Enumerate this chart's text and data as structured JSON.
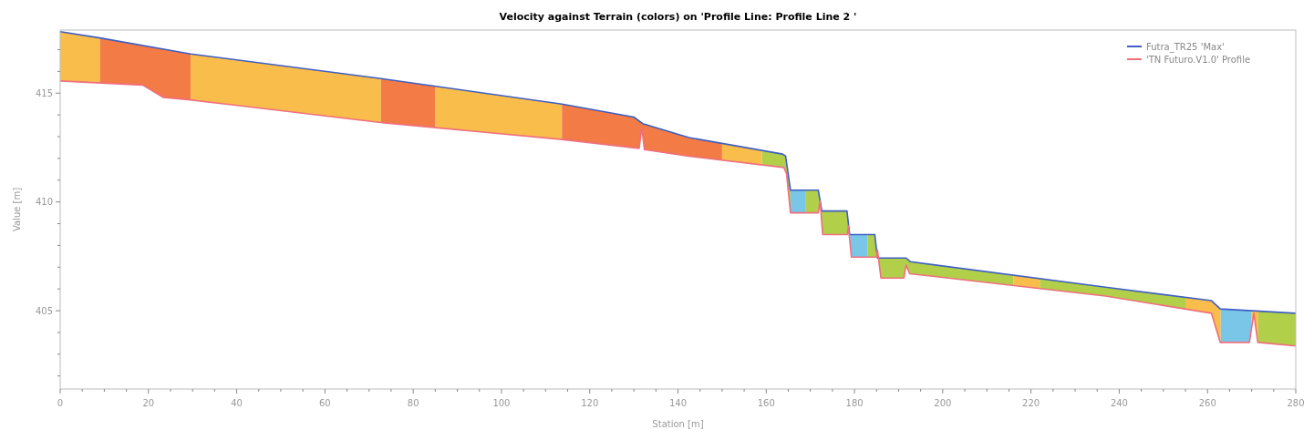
{
  "chart_data": {
    "type": "line",
    "title": "Velocity against Terrain (colors) on 'Profile Line: Profile Line 2 '",
    "xlabel": "Station [m]",
    "ylabel": "Value [m]",
    "legend": "top right",
    "marker": "none",
    "line_style": "solid",
    "xlim": [
      0,
      280
    ],
    "ylim": [
      401.4,
      417.9
    ],
    "xticks": [
      0,
      {
        "value": 5,
        "label": null
      },
      {
        "value": 10,
        "label": null
      },
      {
        "value": 15,
        "label": null
      },
      20,
      {
        "value": 25,
        "label": null
      },
      {
        "value": 30,
        "label": null
      },
      {
        "value": 35,
        "label": null
      },
      40,
      {
        "value": 45,
        "label": null
      },
      {
        "value": 50,
        "label": null
      },
      {
        "value": 55,
        "label": null
      },
      60,
      {
        "value": 65,
        "label": null
      },
      {
        "value": 70,
        "label": null
      },
      {
        "value": 75,
        "label": null
      },
      80,
      {
        "value": 85,
        "label": null
      },
      {
        "value": 90,
        "label": null
      },
      {
        "value": 95,
        "label": null
      },
      100,
      {
        "value": 105,
        "label": null
      },
      {
        "value": 110,
        "label": null
      },
      {
        "value": 115,
        "label": null
      },
      120,
      {
        "value": 125,
        "label": null
      },
      {
        "value": 130,
        "label": null
      },
      {
        "value": 135,
        "label": null
      },
      140,
      {
        "value": 145,
        "label": null
      },
      {
        "value": 150,
        "label": null
      },
      {
        "value": 155,
        "label": null
      },
      160,
      {
        "value": 165,
        "label": null
      },
      {
        "value": 170,
        "label": null
      },
      {
        "value": 175,
        "label": null
      },
      180,
      {
        "value": 185,
        "label": null
      },
      {
        "value": 190,
        "label": null
      },
      {
        "value": 195,
        "label": null
      },
      200,
      {
        "value": 205,
        "label": null
      },
      {
        "value": 210,
        "label": null
      },
      {
        "value": 215,
        "label": null
      },
      220,
      {
        "value": 225,
        "label": null
      },
      {
        "value": 230,
        "label": null
      },
      {
        "value": 235,
        "label": null
      },
      240,
      {
        "value": 245,
        "label": null
      },
      {
        "value": 250,
        "label": null
      },
      {
        "value": 255,
        "label": null
      },
      260,
      {
        "value": 265,
        "label": null
      },
      {
        "value": 270,
        "label": null
      },
      {
        "value": 275,
        "label": null
      },
      280
    ],
    "yticks": [
      {
        "value": 402,
        "label": null
      },
      {
        "value": 403,
        "label": null
      },
      {
        "value": 404,
        "label": null
      },
      405,
      {
        "value": 406,
        "label": null
      },
      {
        "value": 407,
        "label": null
      },
      {
        "value": 408,
        "label": null
      },
      {
        "value": 409,
        "label": null
      },
      410,
      {
        "value": 411,
        "label": null
      },
      {
        "value": 412,
        "label": null
      },
      {
        "value": 413,
        "label": null
      },
      {
        "value": 414,
        "label": null
      },
      415,
      {
        "value": 416,
        "label": null
      },
      {
        "value": 417,
        "label": null
      }
    ],
    "series": [
      {
        "name": "Futra_TR25 'Max'",
        "color": "#3f5fc4",
        "x": [
          0,
          9,
          29.6,
          72.7,
          113.7,
          130,
          132,
          142.5,
          163.7,
          164.4,
          165.5,
          171.8,
          172.6,
          178.3,
          178.9,
          184.6,
          185.2,
          191.7,
          192.7,
          236.9,
          260.9,
          262.9,
          280
        ],
        "values": [
          417.83,
          417.54,
          416.8,
          415.67,
          414.5,
          413.9,
          413.6,
          412.96,
          412.2,
          412.1,
          410.54,
          410.54,
          409.58,
          409.58,
          408.5,
          408.5,
          407.42,
          407.42,
          407.25,
          406.08,
          405.46,
          405.08,
          404.88
        ]
      },
      {
        "name": "'TN Futuro.V1.0' Profile",
        "color": "#ef6f7f",
        "x": [
          0,
          18.7,
          23.4,
          29,
          73.5,
          113.3,
          131.2,
          131.8,
          132.4,
          142.5,
          164,
          164.6,
          165.5,
          171.8,
          172.2,
          172.8,
          178.4,
          178.6,
          179.3,
          185,
          185.2,
          186,
          191.2,
          191.7,
          192.5,
          236.9,
          260.9,
          262.9,
          269.5,
          270.5,
          271.4,
          280
        ],
        "values": [
          415.56,
          415.37,
          414.8,
          414.7,
          413.63,
          412.88,
          412.46,
          413.4,
          412.4,
          412.1,
          411.58,
          411.3,
          409.5,
          409.5,
          410.04,
          408.5,
          408.5,
          408.9,
          407.46,
          407.46,
          407.8,
          406.5,
          406.5,
          407.1,
          406.7,
          405.67,
          404.88,
          403.54,
          403.54,
          404.88,
          403.54,
          403.38
        ]
      }
    ],
    "bands": [
      {
        "axis": "x",
        "from": 0,
        "to": 9,
        "color": "#f9bd4c"
      },
      {
        "axis": "x",
        "from": 9,
        "to": 29.6,
        "color": "#f27b46"
      },
      {
        "axis": "x",
        "from": 29.6,
        "to": 72.7,
        "color": "#f9bd4c"
      },
      {
        "axis": "x",
        "from": 72.7,
        "to": 85,
        "color": "#f27b46"
      },
      {
        "axis": "x",
        "from": 85,
        "to": 113.7,
        "color": "#f9bd4c"
      },
      {
        "axis": "x",
        "from": 113.7,
        "to": 150,
        "color": "#f27b46"
      },
      {
        "axis": "x",
        "from": 150,
        "to": 159,
        "color": "#f9bd4c"
      },
      {
        "axis": "x",
        "from": 159,
        "to": 165.5,
        "color": "#b2cf4a"
      },
      {
        "axis": "x",
        "from": 165.5,
        "to": 169,
        "color": "#79c6e8"
      },
      {
        "axis": "x",
        "from": 169,
        "to": 179,
        "color": "#b2cf4a"
      },
      {
        "axis": "x",
        "from": 179,
        "to": 183,
        "color": "#79c6e8"
      },
      {
        "axis": "x",
        "from": 183,
        "to": 216,
        "color": "#b2cf4a"
      },
      {
        "axis": "x",
        "from": 216,
        "to": 222,
        "color": "#f9bd4c"
      },
      {
        "axis": "x",
        "from": 222,
        "to": 255,
        "color": "#b2cf4a"
      },
      {
        "axis": "x",
        "from": 255,
        "to": 263,
        "color": "#f9bd4c"
      },
      {
        "axis": "x",
        "from": 263,
        "to": 270,
        "color": "#79c6e8"
      },
      {
        "axis": "x",
        "from": 270,
        "to": 271.5,
        "color": "#f9bd4c"
      },
      {
        "axis": "x",
        "from": 271.5,
        "to": 280,
        "color": "#b2cf4a"
      }
    ]
  }
}
